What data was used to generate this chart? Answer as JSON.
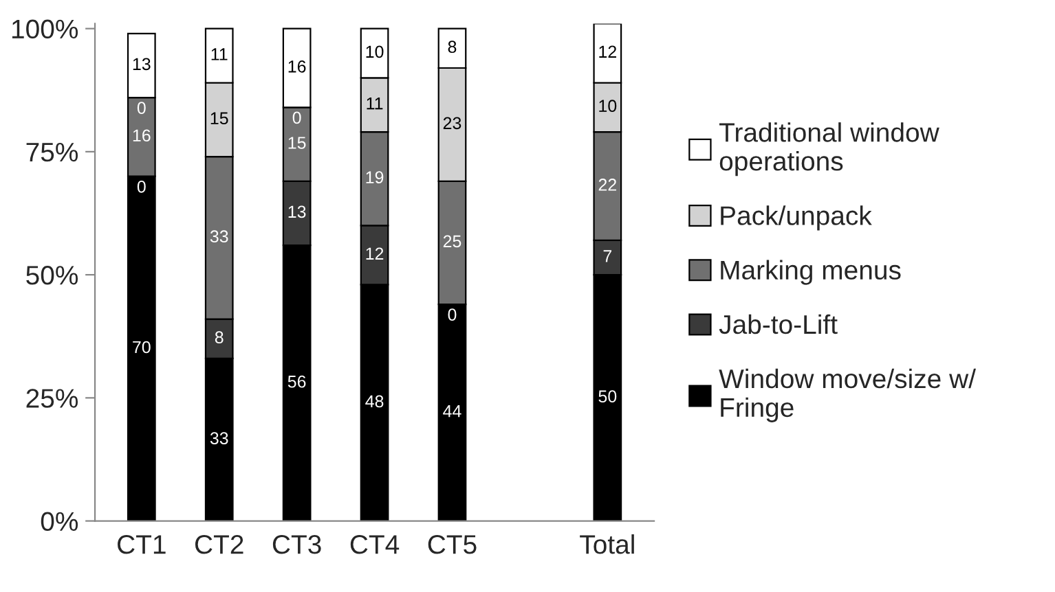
{
  "chart_data": {
    "type": "bar",
    "stacked": true,
    "grid": false,
    "legend": "right",
    "categories": [
      "CT1",
      "CT2",
      "CT3",
      "CT4",
      "CT5",
      null,
      "Total"
    ],
    "ylim": [
      0,
      101
    ],
    "yticks": [
      {
        "value": 0,
        "label": "0%"
      },
      {
        "value": 25,
        "label": "25%"
      },
      {
        "value": 50,
        "label": "50%"
      },
      {
        "value": 75,
        "label": "75%"
      },
      {
        "value": 100,
        "label": "100%"
      }
    ],
    "series": [
      {
        "name": "Window move/size w/\nFringe",
        "color": "#000000",
        "values": [
          70,
          33,
          56,
          48,
          44,
          null,
          50
        ],
        "value_labels": [
          "70",
          "33",
          "56",
          "48",
          "44",
          null,
          "50"
        ]
      },
      {
        "name": "Jab-to-Lift",
        "color": "#3a3a3a",
        "values": [
          0,
          8,
          13,
          12,
          0,
          null,
          7
        ],
        "value_labels": [
          null,
          "8",
          "13",
          "12",
          null,
          null,
          "7"
        ]
      },
      {
        "name": "Marking menus",
        "color": "#707070",
        "values": [
          16,
          33,
          15,
          19,
          25,
          null,
          22
        ],
        "value_labels": [
          "16",
          "33",
          "15",
          "19",
          "25",
          null,
          "22"
        ]
      },
      {
        "name": "Pack/unpack",
        "color": "#d2d2d2",
        "values": [
          0,
          15,
          0,
          11,
          23,
          null,
          10
        ],
        "value_labels": [
          null,
          "15",
          null,
          "11",
          "23",
          null,
          "10"
        ]
      },
      {
        "name": "Traditional window\noperations",
        "color": "#ffffff",
        "values": [
          13,
          11,
          16,
          10,
          8,
          null,
          12
        ],
        "value_labels": [
          "13",
          "11",
          "16",
          "10",
          "8",
          null,
          "12"
        ]
      }
    ],
    "annotations": [
      {
        "text": "0",
        "x": "CT1",
        "y": 70
      },
      {
        "text": "0",
        "x": "CT1",
        "y": 86
      },
      {
        "text": "0",
        "x": "CT3",
        "y": 84
      },
      {
        "text": "0",
        "x": "CT5",
        "y": 44
      }
    ]
  }
}
